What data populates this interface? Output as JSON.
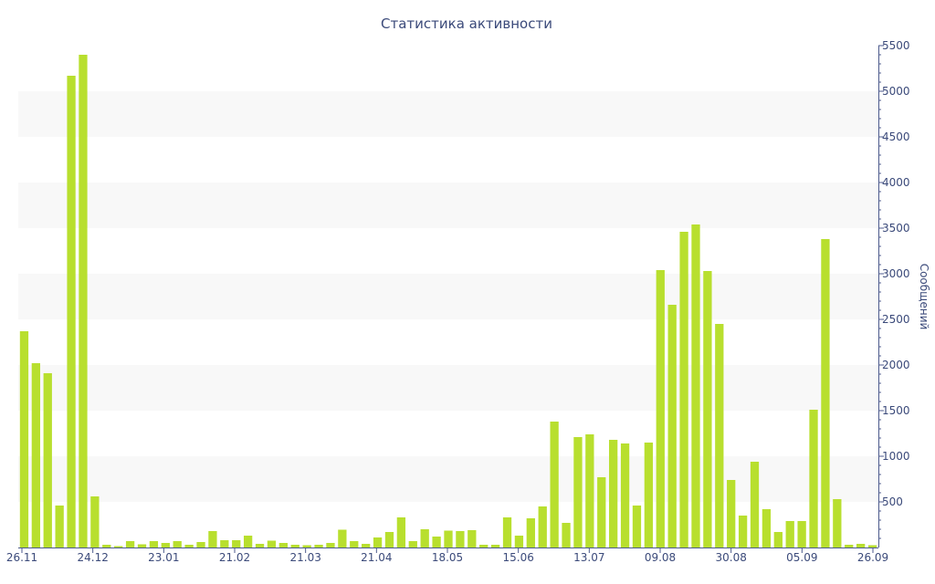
{
  "chart_data": {
    "type": "bar",
    "title": "Статистика активности",
    "ylabel": "Сообщений",
    "ylim": [
      0,
      5500
    ],
    "yticks": [
      500,
      1000,
      1500,
      2000,
      2500,
      3000,
      3500,
      4000,
      4500,
      5000,
      5500
    ],
    "xtick_labels": [
      "26.11",
      "24.12",
      "23.01",
      "21.02",
      "21.03",
      "21.04",
      "18.05",
      "15.06",
      "13.07",
      "09.08",
      "30.08",
      "05.09",
      "26.09"
    ],
    "y_axis_side": "right",
    "grid": "alternating horizontal bands",
    "values": [
      2370,
      2020,
      1910,
      460,
      5170,
      5400,
      560,
      30,
      15,
      70,
      35,
      70,
      50,
      70,
      30,
      60,
      180,
      80,
      80,
      130,
      40,
      75,
      50,
      30,
      25,
      30,
      50,
      195,
      70,
      40,
      110,
      170,
      330,
      70,
      200,
      120,
      185,
      180,
      190,
      30,
      30,
      330,
      130,
      320,
      450,
      1380,
      270,
      1210,
      1240,
      770,
      1180,
      1140,
      460,
      1150,
      3040,
      2660,
      3460,
      3540,
      3030,
      2450,
      740,
      350,
      940,
      420,
      170,
      290,
      290,
      1510,
      3380,
      530,
      30,
      40,
      25
    ],
    "colors": {
      "bar": "#b8df2e",
      "band": "#f8f8f8",
      "axis": "#4c5a8c",
      "text": "#3b4a7a"
    }
  }
}
